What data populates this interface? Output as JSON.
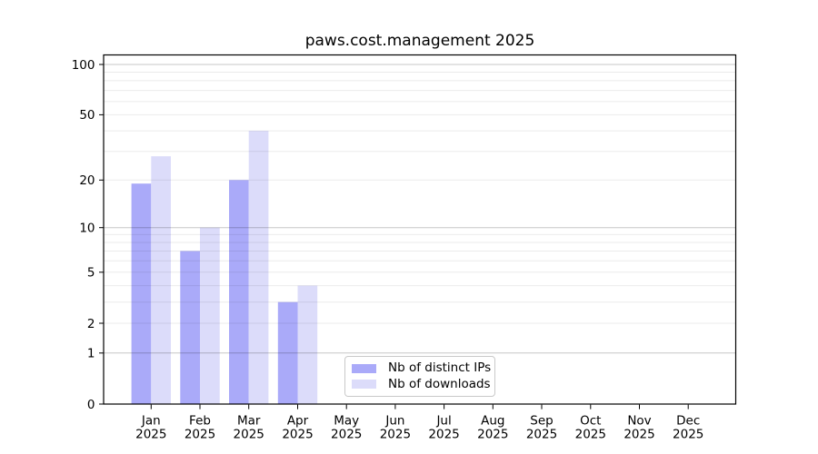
{
  "chart_data": {
    "type": "bar",
    "title": "paws.cost.management 2025",
    "categories": [
      "Jan",
      "Feb",
      "Mar",
      "Apr",
      "May",
      "Jun",
      "Jul",
      "Aug",
      "Sep",
      "Oct",
      "Nov",
      "Dec"
    ],
    "x_year_label": "2025",
    "series": [
      {
        "name": "Nb of distinct IPs",
        "color": "#aaaaf9",
        "values": [
          19,
          7,
          20,
          3,
          0,
          0,
          0,
          0,
          0,
          0,
          0,
          0
        ]
      },
      {
        "name": "Nb of downloads",
        "color": "#dcdcfa",
        "values": [
          28,
          10,
          40,
          4,
          0,
          0,
          0,
          0,
          0,
          0,
          0,
          0
        ]
      }
    ],
    "yscale": "log1p",
    "ylim": [
      0,
      114
    ],
    "yticks": [
      0,
      1,
      2,
      5,
      10,
      20,
      50,
      100
    ],
    "grid_major_values": [
      1,
      10,
      100
    ],
    "grid_minor_values": [
      2,
      3,
      4,
      5,
      6,
      7,
      8,
      9,
      20,
      30,
      40,
      50,
      60,
      70,
      80,
      90
    ],
    "legend_position": "lower center",
    "colors": {
      "bar_distinct_ips": "#aaaaf9",
      "bar_downloads": "#dcdcfa",
      "grid_major": "rgba(0,0,0,0.22)",
      "grid_minor": "rgba(0,0,0,0.08)",
      "axis_frame": "#000000",
      "legend_border": "#c9c9c9",
      "background": "#ffffff",
      "text": "#000000"
    }
  }
}
